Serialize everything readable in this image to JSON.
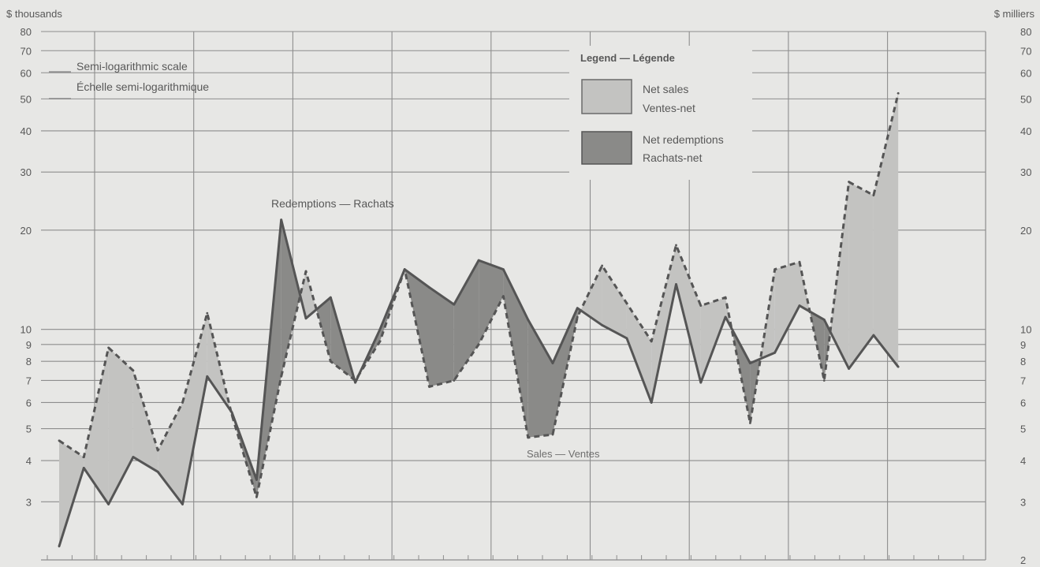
{
  "chart_data": {
    "type": "area",
    "title": "",
    "scale": "log",
    "left_axis_label": "$ thousands",
    "right_axis_label": "$ milliers",
    "scale_note_en": "Semi-logarithmic scale",
    "scale_note_fr": "Échelle semi-logarithmique",
    "ylim": [
      2,
      80
    ],
    "yticks": [
      2,
      3,
      4,
      5,
      6,
      7,
      8,
      9,
      10,
      20,
      30,
      40,
      50,
      60,
      70,
      80
    ],
    "ytick_labels_left": [
      "",
      "3",
      "4",
      "5",
      "6",
      "7",
      "8",
      "9",
      "10",
      "20",
      "30",
      "40",
      "50",
      "60",
      "70",
      "80"
    ],
    "ytick_labels_right": [
      "2",
      "3",
      "4",
      "5",
      "6",
      "7",
      "8",
      "9",
      "10",
      "20",
      "30",
      "40",
      "50",
      "60",
      "70",
      "80"
    ],
    "grid": true,
    "legend": {
      "title": "Legend — Légende",
      "position": "top-right",
      "entries": [
        {
          "line1": "Net sales",
          "line2": "Ventes-net",
          "color": "#c3c3c1"
        },
        {
          "line1": "Net redemptions",
          "line2": "Rachats-net",
          "color": "#8a8a88"
        }
      ]
    },
    "series": [
      {
        "name": "Redemptions — Rachats",
        "style": "solid",
        "values": [
          2.2,
          3.8,
          2.95,
          4.1,
          3.7,
          2.95,
          7.2,
          5.6,
          3.5,
          21.5,
          10.8,
          12.5,
          6.9,
          10,
          15.2,
          13.4,
          11.9,
          16.2,
          15.2,
          10.7,
          7.9,
          11.6,
          10.3,
          9.4,
          6,
          13.7,
          6.9,
          10.9,
          7.9,
          8.5,
          11.8,
          10.7,
          7.6,
          9.6,
          7.7
        ],
        "color": "#555555"
      },
      {
        "name": "Sales — Ventes",
        "style": "dashed",
        "values": [
          4.6,
          4.1,
          8.8,
          7.5,
          4.3,
          6,
          11.2,
          5.5,
          3.1,
          7.2,
          15,
          8,
          7,
          9.2,
          15.2,
          6.7,
          7,
          9,
          12.6,
          4.7,
          4.8,
          10.9,
          15.6,
          12,
          9.2,
          18,
          11.8,
          12.5,
          5.2,
          15.2,
          16,
          7,
          28,
          25.5,
          52
        ],
        "color": "#555555"
      }
    ],
    "annotations": {
      "redemptions": "Redemptions — Rachats",
      "sales": "Sales — Ventes"
    },
    "colors": {
      "background": "#e7e7e5",
      "net_sales_fill": "#c3c3c1",
      "net_redemptions_fill": "#8a8a88",
      "line": "#555555",
      "grid": "#8d8d8d"
    }
  }
}
